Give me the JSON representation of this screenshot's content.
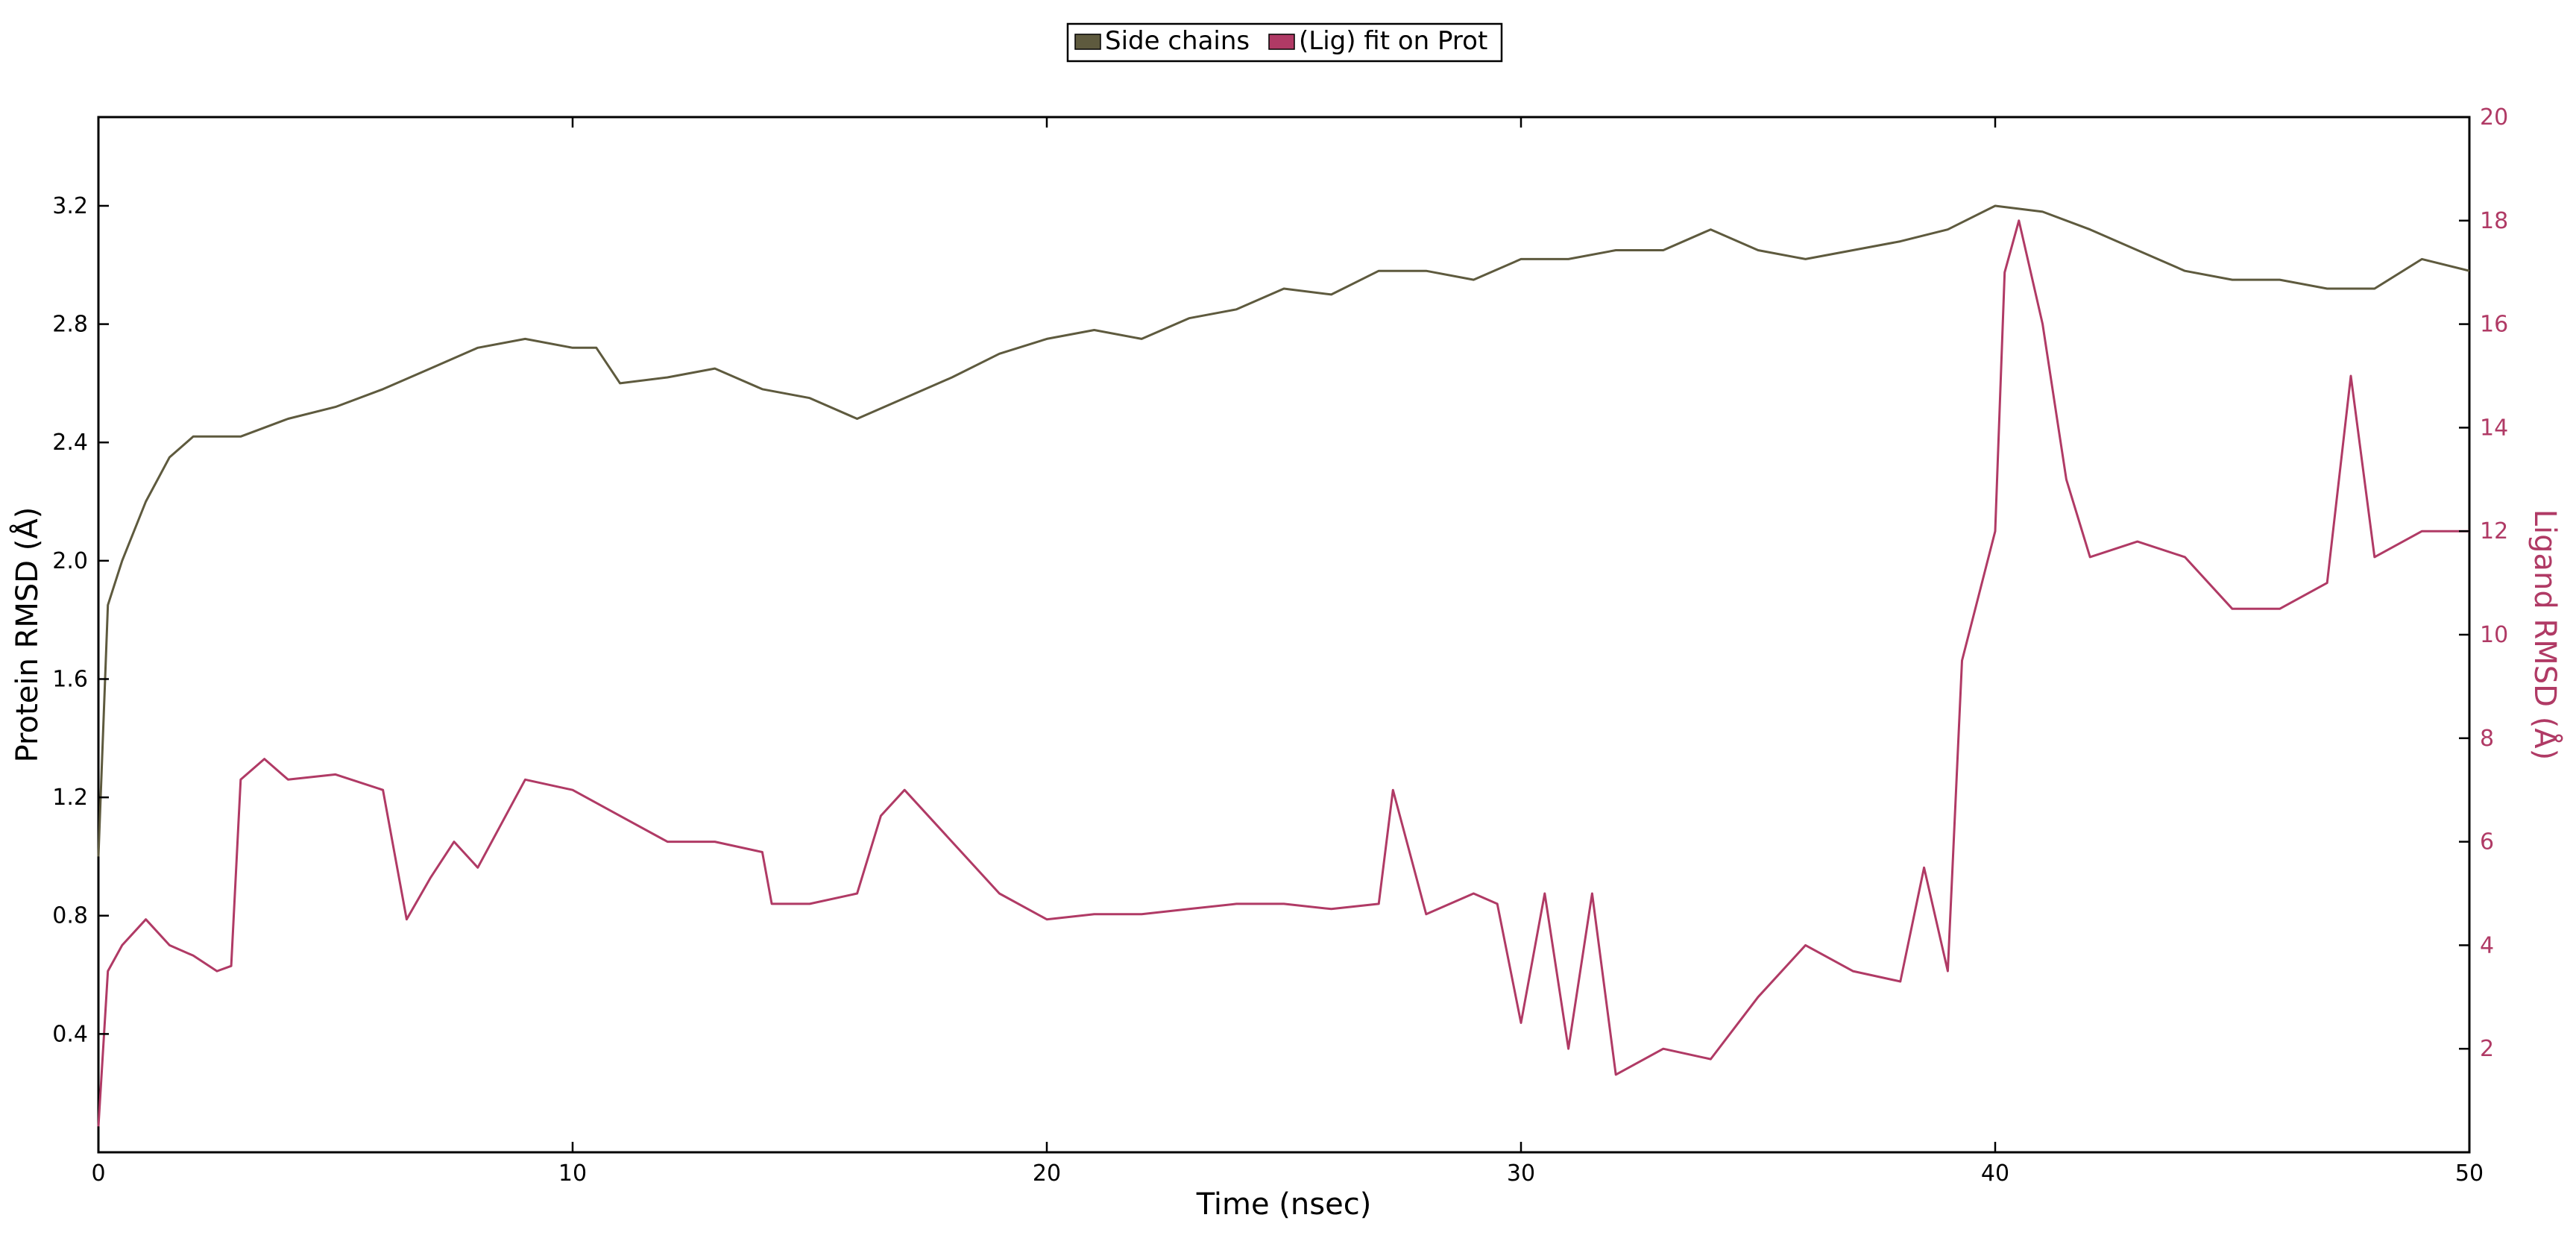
{
  "colors": {
    "side_chains": "#5e5a3e",
    "ligand": "#b03a65",
    "axis": "#000000",
    "right_axis_text": "#b03a65"
  },
  "legend": {
    "placement": "top-center",
    "items": [
      {
        "label": "Side chains",
        "color": "#5e5a3e"
      },
      {
        "label": "(Lig) fit on Prot",
        "color": "#b03a65"
      }
    ]
  },
  "chart_data": {
    "type": "line",
    "grid": false,
    "xlabel": "Time (nsec)",
    "ylabel_left": "Protein RMSD (Å)",
    "ylabel_right": "Ligand RMSD (Å)",
    "xlim": [
      0,
      50
    ],
    "ylim_left": [
      0.0,
      3.5
    ],
    "ylim_right": [
      0,
      20
    ],
    "x_ticks": [
      "0",
      "10",
      "20",
      "30",
      "40",
      "50"
    ],
    "y_ticks_left": [
      "0.4",
      "0.8",
      "1.2",
      "1.6",
      "2.0",
      "2.4",
      "2.8",
      "3.2"
    ],
    "y_ticks_right": [
      "2",
      "4",
      "6",
      "8",
      "10",
      "12",
      "14",
      "16",
      "18",
      "20"
    ],
    "series": [
      {
        "name": "Side chains",
        "axis": "left",
        "x": [
          0,
          0.2,
          0.5,
          1,
          1.5,
          2,
          3,
          4,
          5,
          6,
          7,
          8,
          9,
          10,
          10.5,
          11,
          12,
          13,
          14,
          15,
          16,
          17,
          18,
          19,
          20,
          21,
          22,
          23,
          24,
          25,
          26,
          27,
          28,
          29,
          30,
          31,
          32,
          33,
          34,
          35,
          36,
          37,
          38,
          39,
          40,
          41,
          42,
          43,
          44,
          45,
          46,
          47,
          48,
          49,
          50
        ],
        "values": [
          1.0,
          1.85,
          2.0,
          2.2,
          2.35,
          2.42,
          2.42,
          2.48,
          2.52,
          2.58,
          2.65,
          2.72,
          2.75,
          2.72,
          2.72,
          2.6,
          2.62,
          2.65,
          2.58,
          2.55,
          2.48,
          2.55,
          2.62,
          2.7,
          2.75,
          2.78,
          2.75,
          2.82,
          2.85,
          2.92,
          2.9,
          2.98,
          2.98,
          2.95,
          3.02,
          3.02,
          3.05,
          3.05,
          3.12,
          3.05,
          3.02,
          3.05,
          3.08,
          3.12,
          3.2,
          3.18,
          3.12,
          3.05,
          2.98,
          2.95,
          2.95,
          2.92,
          2.92,
          3.02,
          2.98
        ]
      },
      {
        "name": "(Lig) fit on Prot",
        "axis": "right",
        "x": [
          0,
          0.2,
          0.5,
          1,
          1.5,
          2,
          2.5,
          2.8,
          3,
          3.5,
          4,
          5,
          6,
          6.5,
          7,
          7.5,
          8,
          9,
          10,
          11,
          12,
          13,
          14,
          14.2,
          15,
          16,
          16.5,
          17,
          18,
          19,
          20,
          21,
          22,
          23,
          24,
          25,
          26,
          27,
          27.3,
          28,
          29,
          29.5,
          30,
          30.5,
          31,
          31.5,
          32,
          33,
          34,
          35,
          36,
          37,
          38,
          38.5,
          39,
          39.3,
          40,
          40.2,
          40.5,
          41,
          41.5,
          42,
          43,
          44,
          45,
          46,
          47,
          47.5,
          48,
          49,
          50
        ],
        "values": [
          0.5,
          3.5,
          4.0,
          4.5,
          4.0,
          3.8,
          3.5,
          3.6,
          7.2,
          7.6,
          7.2,
          7.3,
          7.0,
          4.5,
          5.3,
          6.0,
          5.5,
          7.2,
          7.0,
          6.5,
          6.0,
          6.0,
          5.8,
          4.8,
          4.8,
          5.0,
          6.5,
          7.0,
          6.0,
          5.0,
          4.5,
          4.6,
          4.6,
          4.7,
          4.8,
          4.8,
          4.7,
          4.8,
          7.0,
          4.6,
          5.0,
          4.8,
          2.5,
          5.0,
          2.0,
          5.0,
          1.5,
          2.0,
          1.8,
          3.0,
          4.0,
          3.5,
          3.3,
          5.5,
          3.5,
          9.5,
          12.0,
          17.0,
          18.0,
          16.0,
          13.0,
          11.5,
          11.8,
          11.5,
          10.5,
          10.5,
          11.0,
          15.0,
          11.5,
          12.0,
          12.0
        ]
      }
    ]
  }
}
